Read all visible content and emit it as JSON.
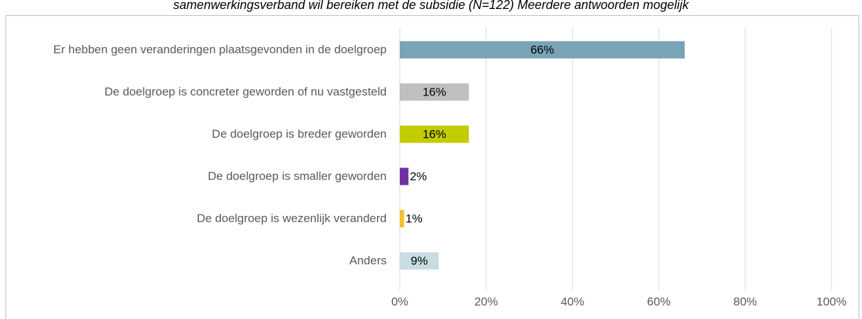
{
  "chart_data": {
    "type": "barh",
    "title": "samenwerkingsverband wil bereiken met de subsidie (N=122) Meerdere antwoorden mogelijk",
    "categories": [
      "Er hebben geen veranderingen plaatsgevonden in de doelgroep",
      "De doelgroep is concreter geworden of nu vastgesteld",
      "De doelgroep is breder geworden",
      "De doelgroep is smaller geworden",
      "De doelgroep is wezenlijk veranderd",
      "Anders"
    ],
    "values": [
      66,
      16,
      16,
      2,
      1,
      9
    ],
    "value_labels": [
      "66%",
      "16%",
      "16%",
      "2%",
      "1%",
      "9%"
    ],
    "colors": [
      "#7aa3b8",
      "#bfbfbf",
      "#c3cc00",
      "#7030a0",
      "#f2c12e",
      "#c9dbe3"
    ],
    "xlim": [
      0,
      100
    ],
    "xticks": [
      {
        "value": 0,
        "label": "0%"
      },
      {
        "value": 20,
        "label": "20%"
      },
      {
        "value": 40,
        "label": "40%"
      },
      {
        "value": 60,
        "label": "60%"
      },
      {
        "value": 80,
        "label": "80%"
      },
      {
        "value": 100,
        "label": "100%"
      }
    ],
    "grid": true
  }
}
